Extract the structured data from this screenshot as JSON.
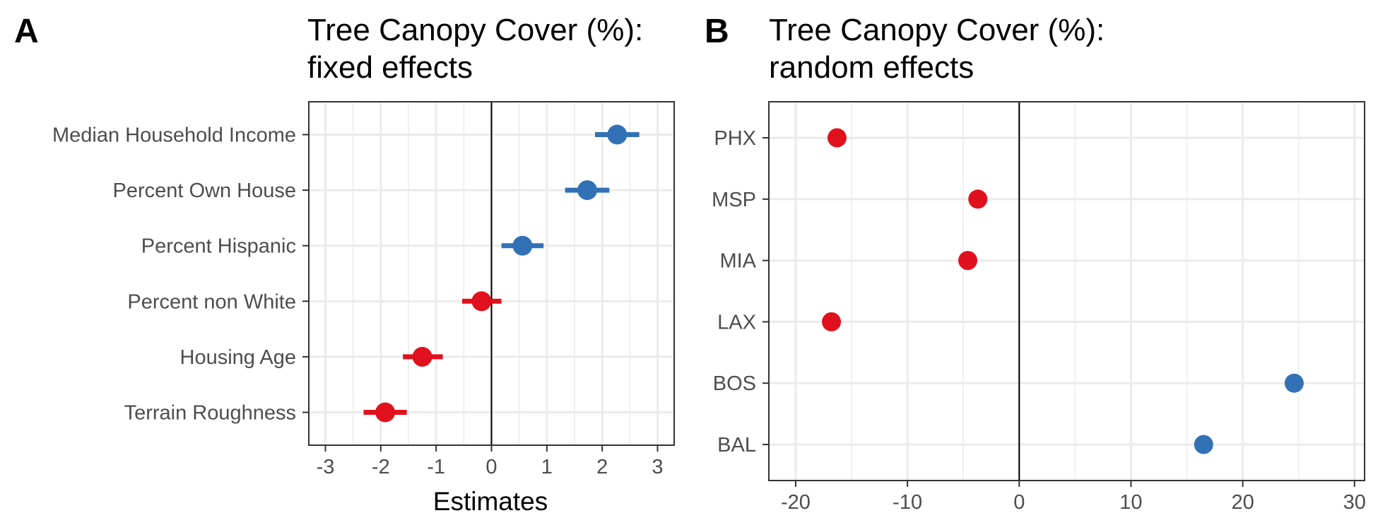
{
  "colors": {
    "positive": "#3271b5",
    "negative": "#e0111c",
    "grid": "#ebebeb",
    "frame": "#333333",
    "zero_line": "#000000"
  },
  "chart_data": [
    {
      "panel_label": "A",
      "type": "scatter",
      "title_lines": [
        "Tree Canopy Cover (%):",
        "fixed effects"
      ],
      "xlabel": "Estimates",
      "ylabel": "",
      "xlim": [
        -3.3,
        3.3
      ],
      "x_ticks": [
        -3,
        -2,
        -1,
        0,
        1,
        2,
        3
      ],
      "x_tick_labels": [
        "-3",
        "-2",
        "-1",
        "0",
        "1",
        "2",
        "3"
      ],
      "grid": true,
      "reference_line_x": 0,
      "categories": [
        "Median Household Income",
        "Percent Own House",
        "Percent Hispanic",
        "Percent non White",
        "Housing Age",
        "Terrain Roughness"
      ],
      "estimates": [
        2.27,
        1.73,
        0.56,
        -0.18,
        -1.25,
        -1.92
      ],
      "ci_low": [
        1.87,
        1.33,
        0.18,
        -0.53,
        -1.6,
        -2.31
      ],
      "ci_high": [
        2.67,
        2.13,
        0.94,
        0.18,
        -0.88,
        -1.53
      ],
      "sign": [
        "positive",
        "positive",
        "positive",
        "negative",
        "negative",
        "negative"
      ]
    },
    {
      "panel_label": "B",
      "type": "scatter",
      "title_lines": [
        "Tree Canopy Cover (%):",
        "random effects"
      ],
      "xlabel": "",
      "ylabel": "",
      "xlim": [
        -22.4,
        30.9
      ],
      "x_ticks": [
        -20,
        -10,
        0,
        10,
        20,
        30
      ],
      "x_tick_labels": [
        "-20",
        "-10",
        "0",
        "10",
        "20",
        "30"
      ],
      "grid": true,
      "reference_line_x": 0,
      "categories": [
        "PHX",
        "MSP",
        "MIA",
        "LAX",
        "BOS",
        "BAL"
      ],
      "estimates": [
        -16.3,
        -3.7,
        -4.6,
        -16.8,
        24.6,
        16.5
      ],
      "sign": [
        "negative",
        "negative",
        "negative",
        "negative",
        "positive",
        "positive"
      ]
    }
  ]
}
